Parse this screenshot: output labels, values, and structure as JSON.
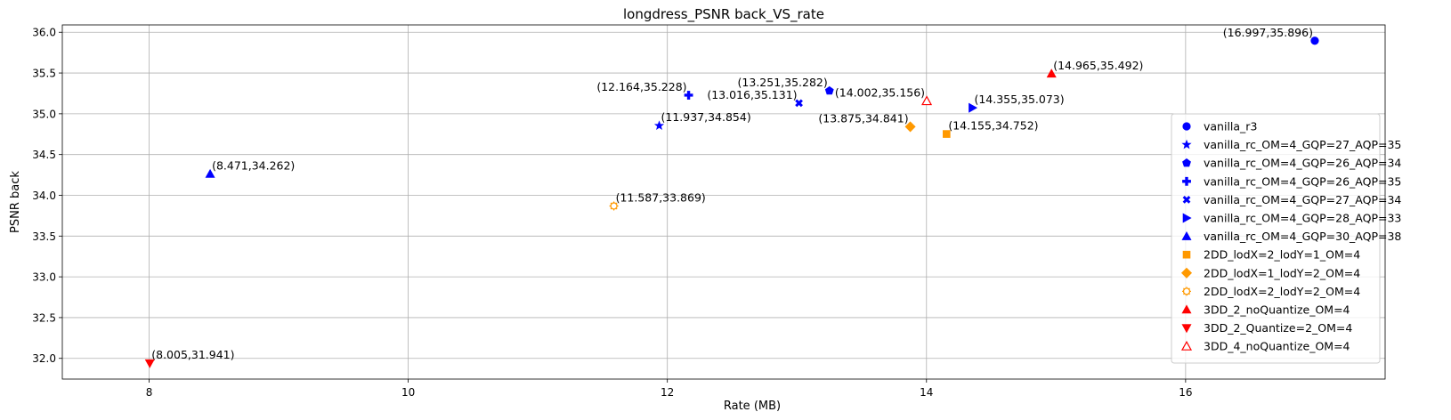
{
  "chart_data": {
    "type": "scatter",
    "title": "longdress_PSNR back_VS_rate",
    "xlabel": "Rate (MB)",
    "ylabel": "PSNR back",
    "xlim": [
      7.33,
      17.54
    ],
    "ylim": [
      31.746,
      36.09
    ],
    "xticks": [
      "8",
      "10",
      "12",
      "14",
      "16"
    ],
    "yticks": [
      "32.0",
      "32.5",
      "33.0",
      "33.5",
      "34.0",
      "34.5",
      "35.0",
      "35.5",
      "36.0"
    ],
    "grid": true,
    "legend_position": "lower-right",
    "series": [
      {
        "name": "vanilla_r3",
        "marker": "circle",
        "color": "#0000ff",
        "filled": true,
        "x": 16.997,
        "y": 35.896,
        "label": "(16.997,35.896)",
        "label_align": "left"
      },
      {
        "name": "vanilla_rc_OM=4_GQP=27_AQP=35",
        "marker": "star",
        "color": "#0000ff",
        "filled": true,
        "x": 11.937,
        "y": 34.854,
        "label": "(11.937,34.854)",
        "label_align": "right"
      },
      {
        "name": "vanilla_rc_OM=4_GQP=26_AQP=34",
        "marker": "pentagon",
        "color": "#0000ff",
        "filled": true,
        "x": 13.251,
        "y": 35.282,
        "label": "(13.251,35.282)",
        "label_align": "left"
      },
      {
        "name": "vanilla_rc_OM=4_GQP=26_AQP=35",
        "marker": "plus",
        "color": "#0000ff",
        "filled": true,
        "x": 12.164,
        "y": 35.228,
        "label": "(12.164,35.228)",
        "label_align": "left"
      },
      {
        "name": "vanilla_rc_OM=4_GQP=27_AQP=34",
        "marker": "x",
        "color": "#0000ff",
        "filled": true,
        "x": 13.016,
        "y": 35.131,
        "label": "(13.016,35.131)",
        "label_align": "left"
      },
      {
        "name": "vanilla_rc_OM=4_GQP=28_AQP=33",
        "marker": "triangle-right",
        "color": "#0000ff",
        "filled": true,
        "x": 14.355,
        "y": 35.073,
        "label": "(14.355,35.073)",
        "label_align": "right"
      },
      {
        "name": "vanilla_rc_OM=4_GQP=30_AQP=38",
        "marker": "triangle-up",
        "color": "#0000ff",
        "filled": true,
        "x": 8.471,
        "y": 34.262,
        "label": "(8.471,34.262)",
        "label_align": "right"
      },
      {
        "name": "2DD_lodX=2_lodY=1_OM=4",
        "marker": "square",
        "color": "#ff9900",
        "filled": true,
        "x": 14.155,
        "y": 34.752,
        "label": "(14.155,34.752)",
        "label_align": "right"
      },
      {
        "name": "2DD_lodX=1_lodY=2_OM=4",
        "marker": "diamond",
        "color": "#ff9900",
        "filled": true,
        "x": 13.875,
        "y": 34.841,
        "label": "(13.875,34.841)",
        "label_align": "left"
      },
      {
        "name": "2DD_lodX=2_lodY=2_OM=4",
        "marker": "octagon-outline",
        "color": "#ff9900",
        "filled": false,
        "x": 11.587,
        "y": 33.869,
        "label": "(11.587,33.869)",
        "label_align": "right"
      },
      {
        "name": "3DD_2_noQuantize_OM=4",
        "marker": "triangle-up",
        "color": "#ff0000",
        "filled": true,
        "x": 14.965,
        "y": 35.492,
        "label": "(14.965,35.492)",
        "label_align": "right"
      },
      {
        "name": "3DD_2_Quantize=2_OM=4",
        "marker": "triangle-down",
        "color": "#ff0000",
        "filled": true,
        "x": 8.005,
        "y": 31.941,
        "label": "(8.005,31.941)",
        "label_align": "right"
      },
      {
        "name": "3DD_4_noQuantize_OM=4",
        "marker": "triangle-up",
        "color": "#ff0000",
        "filled": false,
        "x": 14.002,
        "y": 35.156,
        "label": "(14.002,35.156)",
        "label_align": "left"
      }
    ]
  }
}
